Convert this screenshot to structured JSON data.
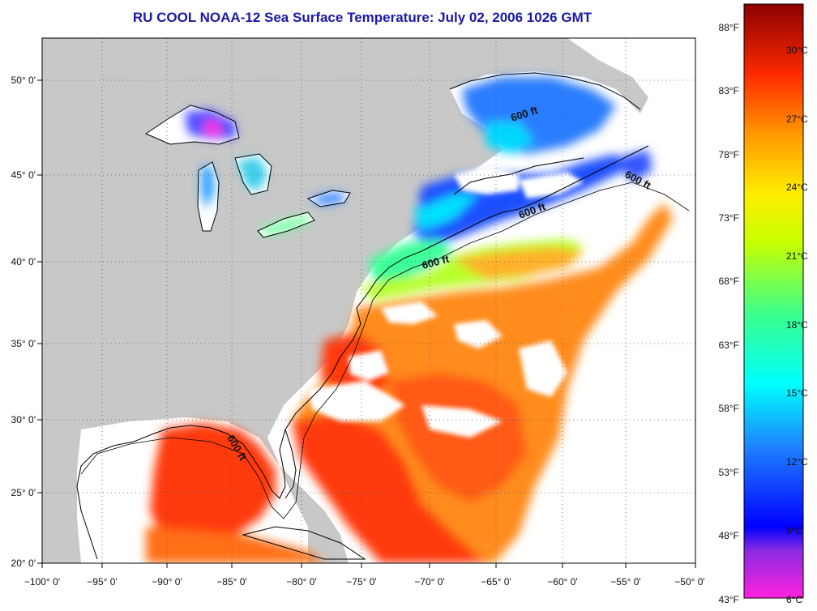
{
  "title": "RU COOL  NOAA-12  Sea Surface Temperature:  July 02, 2006 1026 GMT",
  "lon_labels": [
    "−100° 0'",
    "−95° 0'",
    "−90° 0'",
    "−85° 0'",
    "−80° 0'",
    "−75° 0'",
    "−70° 0'",
    "−65° 0'",
    "−60° 0'",
    "−55° 0'",
    "−50° 0'"
  ],
  "lat_labels": [
    "50° 0'",
    "45° 0'",
    "40° 0'",
    "35° 0'",
    "30° 0'",
    "25° 0'",
    "20° 0'"
  ],
  "colorbar": {
    "fahrenheit": [
      "88°F",
      "83°F",
      "78°F",
      "73°F",
      "68°F",
      "63°F",
      "58°F",
      "53°F",
      "48°F",
      "43°F"
    ],
    "celsius": [
      "30°C",
      "27°C",
      "24°C",
      "21°C",
      "18°C",
      "15°C",
      "12°C",
      "9°C",
      "6°C"
    ]
  },
  "isobath_label": "600 ft"
}
